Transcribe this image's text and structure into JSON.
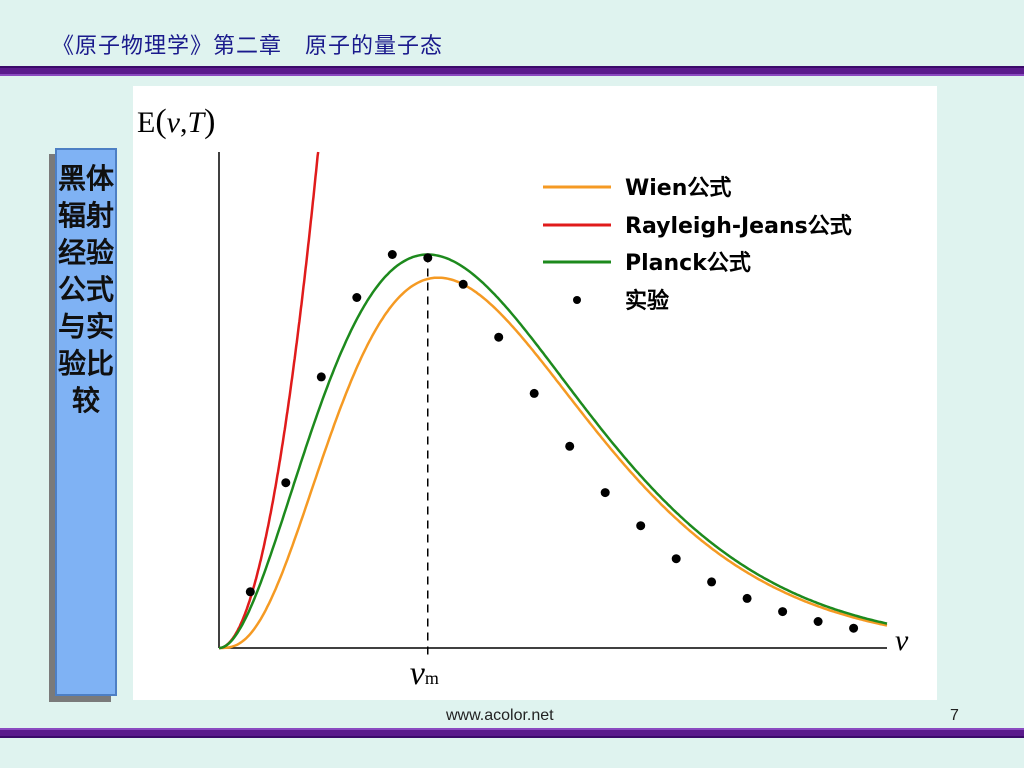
{
  "header": {
    "title": "《原子物理学》第二章　原子的量子态"
  },
  "sidebar": {
    "label": "黑体辐射经验公式与实验比较"
  },
  "footer": {
    "url": "www.acolor.net",
    "page": "7"
  },
  "colors": {
    "wien": "#f59a23",
    "rayleigh": "#e01b1b",
    "planck": "#1d8a1d",
    "experiment": "#000000",
    "sidebar": "#7fb2f4",
    "rule": "#5a1a8c"
  },
  "chart_data": {
    "type": "line",
    "ylabel_parts": [
      "E",
      "ν",
      ",",
      "T"
    ],
    "xlabel": "ν",
    "peak_label": {
      "main": "ν",
      "sub": "m"
    },
    "peak_x": 1.0,
    "xlim": [
      0,
      3.2
    ],
    "ylim": [
      0,
      1.5
    ],
    "series": [
      {
        "name": "Wien公式",
        "key": "wien"
      },
      {
        "name": "Rayleigh-Jeans公式",
        "key": "rayleigh"
      },
      {
        "name": "Planck公式",
        "key": "planck"
      },
      {
        "name": "实验",
        "key": "experiment"
      }
    ],
    "experiment_points": [
      {
        "x": 0.15,
        "y": 0.17
      },
      {
        "x": 0.32,
        "y": 0.5
      },
      {
        "x": 0.49,
        "y": 0.82
      },
      {
        "x": 0.66,
        "y": 1.06
      },
      {
        "x": 0.83,
        "y": 1.19
      },
      {
        "x": 1.0,
        "y": 1.18
      },
      {
        "x": 1.17,
        "y": 1.1
      },
      {
        "x": 1.34,
        "y": 0.94
      },
      {
        "x": 1.51,
        "y": 0.77
      },
      {
        "x": 1.68,
        "y": 0.61
      },
      {
        "x": 1.85,
        "y": 0.47
      },
      {
        "x": 2.02,
        "y": 0.37
      },
      {
        "x": 2.19,
        "y": 0.27
      },
      {
        "x": 2.36,
        "y": 0.2
      },
      {
        "x": 2.53,
        "y": 0.15
      },
      {
        "x": 2.7,
        "y": 0.11
      },
      {
        "x": 2.87,
        "y": 0.08
      },
      {
        "x": 3.04,
        "y": 0.06
      }
    ]
  }
}
